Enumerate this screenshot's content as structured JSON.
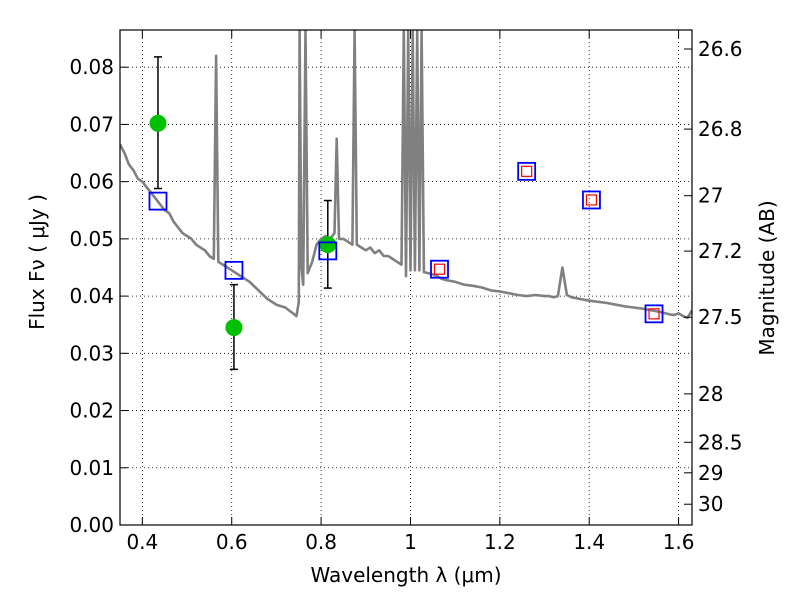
{
  "chart_data": {
    "type": "line",
    "x_axis": {
      "label": "Wavelength  λ (μm)",
      "range": [
        0.35,
        1.63
      ],
      "ticks": [
        0.4,
        0.6,
        0.8,
        1.0,
        1.2,
        1.4,
        1.6
      ],
      "tick_labels": [
        "0.4",
        "0.6",
        "0.8",
        "1",
        "1.2",
        "1.4",
        "1.6"
      ]
    },
    "y_axis": {
      "label": "Flux  Fν  ( μJy )",
      "range": [
        0.0,
        0.0865
      ],
      "ticks": [
        0.0,
        0.01,
        0.02,
        0.03,
        0.04,
        0.05,
        0.06,
        0.07,
        0.08
      ],
      "tick_labels": [
        "0.00",
        "0.01",
        "0.02",
        "0.03",
        "0.04",
        "0.05",
        "0.06",
        "0.07",
        "0.08"
      ]
    },
    "y2_axis": {
      "label": "Magnitude (AB)",
      "scale": "AB magnitude of the flux (m = 23.9 - 2.5 log10 Fν)",
      "tick_labels": [
        "26.6",
        "26.8",
        "27",
        "27.2",
        "27.5",
        "28",
        "28.5",
        "29",
        "30"
      ],
      "tick_values": [
        26.6,
        26.8,
        27.0,
        27.2,
        27.5,
        28.0,
        28.5,
        29.0,
        30.0
      ]
    },
    "grid": true,
    "series": [
      {
        "kind": "sed_model",
        "color": "#808080",
        "x": [
          0.35,
          0.36,
          0.37,
          0.38,
          0.39,
          0.4,
          0.41,
          0.42,
          0.43,
          0.44,
          0.45,
          0.46,
          0.47,
          0.48,
          0.49,
          0.5,
          0.51,
          0.52,
          0.53,
          0.54,
          0.55,
          0.56,
          0.565,
          0.57,
          0.58,
          0.6,
          0.62,
          0.64,
          0.66,
          0.68,
          0.7,
          0.72,
          0.74,
          0.745,
          0.75,
          0.752,
          0.756,
          0.76,
          0.765,
          0.77,
          0.78,
          0.79,
          0.8,
          0.81,
          0.82,
          0.83,
          0.835,
          0.84,
          0.85,
          0.86,
          0.87,
          0.875,
          0.88,
          0.89,
          0.9,
          0.91,
          0.92,
          0.93,
          0.94,
          0.95,
          0.96,
          0.97,
          0.98,
          0.985,
          0.99,
          0.995,
          1.0,
          1.005,
          1.01,
          1.015,
          1.02,
          1.025,
          1.03,
          1.04,
          1.05,
          1.06,
          1.07,
          1.08,
          1.1,
          1.12,
          1.14,
          1.16,
          1.18,
          1.2,
          1.22,
          1.24,
          1.26,
          1.28,
          1.3,
          1.31,
          1.32,
          1.33,
          1.34,
          1.35,
          1.36,
          1.38,
          1.4,
          1.42,
          1.44,
          1.46,
          1.48,
          1.5,
          1.52,
          1.54,
          1.56,
          1.57,
          1.58,
          1.59,
          1.6,
          1.61,
          1.62,
          1.63
        ],
        "y": [
          0.0665,
          0.065,
          0.063,
          0.062,
          0.0605,
          0.06,
          0.059,
          0.058,
          0.057,
          0.056,
          0.055,
          0.0545,
          0.053,
          0.052,
          0.051,
          0.0505,
          0.05,
          0.049,
          0.0485,
          0.048,
          0.047,
          0.0465,
          0.082,
          0.046,
          0.0455,
          0.0445,
          0.0435,
          0.0425,
          0.041,
          0.0395,
          0.0385,
          0.038,
          0.0368,
          0.0365,
          0.039,
          0.0865,
          0.045,
          0.042,
          0.0865,
          0.044,
          0.046,
          0.049,
          0.05,
          0.0505,
          0.05,
          0.051,
          0.0675,
          0.05,
          0.05,
          0.0495,
          0.049,
          0.0865,
          0.049,
          0.0485,
          0.048,
          0.0485,
          0.0475,
          0.048,
          0.047,
          0.047,
          0.0465,
          0.046,
          0.0455,
          0.0865,
          0.0435,
          0.0865,
          0.0445,
          0.0865,
          0.0445,
          0.0865,
          0.0445,
          0.0865,
          0.0442,
          0.044,
          0.0438,
          0.0435,
          0.043,
          0.0428,
          0.0425,
          0.042,
          0.0418,
          0.0415,
          0.041,
          0.0408,
          0.0405,
          0.0402,
          0.04,
          0.0402,
          0.04,
          0.04,
          0.0398,
          0.04,
          0.045,
          0.0402,
          0.0398,
          0.0395,
          0.0392,
          0.039,
          0.0388,
          0.0385,
          0.0382,
          0.038,
          0.0378,
          0.0375,
          0.0372,
          0.037,
          0.0368,
          0.0367,
          0.037,
          0.0365,
          0.0362,
          0.0375
        ]
      },
      {
        "kind": "observed_flux",
        "color": "#00c000",
        "marker": "circle",
        "x": [
          0.435,
          0.605,
          0.815
        ],
        "y": [
          0.0702,
          0.0345,
          0.049
        ],
        "err_low": [
          0.0588,
          0.0272,
          0.0414
        ],
        "err_high": [
          0.0818,
          0.042,
          0.0567
        ]
      },
      {
        "kind": "model_band_flux",
        "color": "#0000ff",
        "marker": "square_open",
        "x": [
          0.435,
          0.605,
          0.815,
          1.065,
          1.26,
          1.405,
          1.545
        ],
        "y": [
          0.0566,
          0.0445,
          0.0479,
          0.0447,
          0.0618,
          0.0568,
          0.0369
        ]
      },
      {
        "kind": "model_band_flux_inner",
        "color": "#ff0000",
        "marker": "square_open_small",
        "x": [
          1.065,
          1.26,
          1.405,
          1.545
        ],
        "y": [
          0.0447,
          0.0618,
          0.0568,
          0.0369
        ]
      }
    ]
  }
}
